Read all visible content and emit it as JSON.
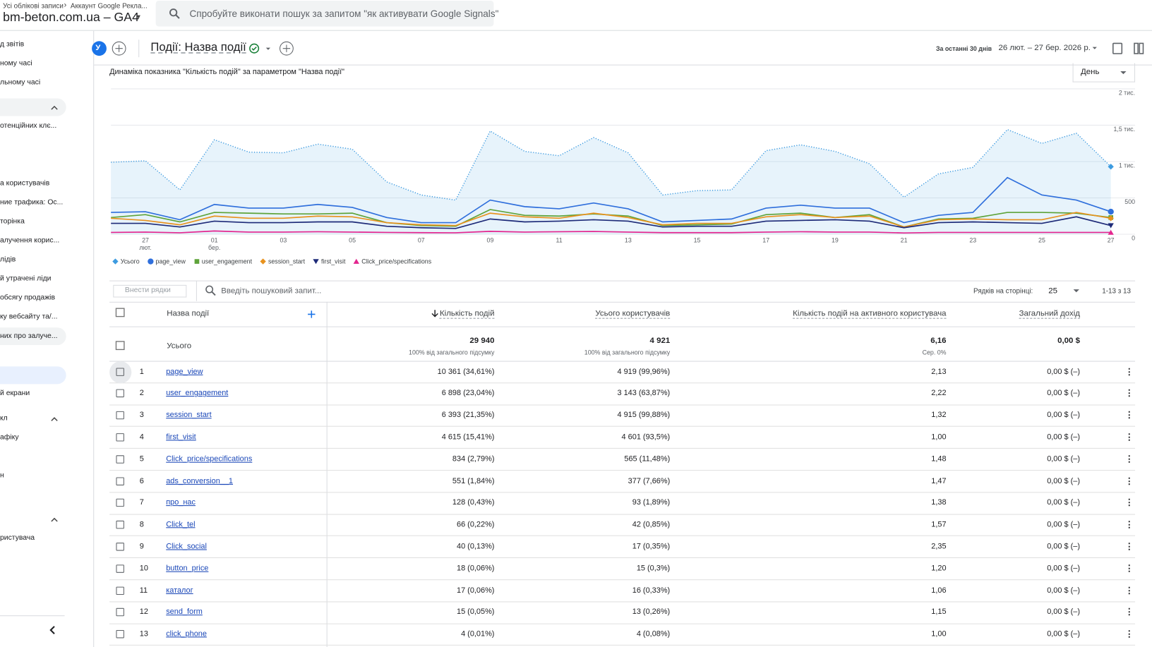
{
  "header": {
    "breadcrumb": [
      "Усі облікові записи",
      "Аккаунт Google Рекла..."
    ],
    "property": "bm-beton.com.ua – GA4",
    "search_placeholder": "Спробуйте виконати пошук за запитом \"як активувати Google Signals\""
  },
  "sidebar": {
    "items": [
      "д звітів",
      "ному часі",
      "льному часі",
      "отенційних клє...",
      "а користувачів",
      "ние трафика: Ос...",
      "торінка",
      "алучення корис...",
      "лідів",
      "й утрачені ліди",
      "обсягу продажів",
      "ку вебсайту та/...",
      "них про залуче...",
      "й екрани",
      "кл",
      "афіку",
      "н",
      "ристувача"
    ]
  },
  "toolbar": {
    "avatar": "У",
    "report_title": "Події: Назва події",
    "date_range_label": "За останні 30 днів",
    "date_range": "26 лют. – 27 бер. 2026 р."
  },
  "chart_data": {
    "type": "line",
    "title": "Динаміка показника \"Кількість подій\" за параметром \"Назва події\"",
    "granularity": "День",
    "categories": [
      null,
      "27\nлют.",
      null,
      "01\nбер.",
      null,
      "03",
      null,
      "05",
      null,
      "07",
      null,
      "09",
      null,
      "11",
      null,
      "13",
      null,
      "15",
      null,
      "17",
      null,
      "19",
      null,
      "21",
      null,
      "23",
      null,
      "25",
      null,
      "27"
    ],
    "ylim": [
      0,
      2000
    ],
    "yticks": [
      0,
      500,
      {
        "value": 1000,
        "label": "1 тис."
      },
      {
        "value": 1500,
        "label": "1,5 тис."
      },
      {
        "value": 2000,
        "label": "2 тис."
      }
    ],
    "grid": true,
    "series": [
      {
        "name": "Усього",
        "color": "#3d9be0",
        "marker": "diamond",
        "style": "dotted",
        "values": [
          990,
          1010,
          610,
          1300,
          1130,
          1120,
          1240,
          1170,
          720,
          540,
          470,
          1420,
          1140,
          1080,
          1330,
          1120,
          540,
          600,
          610,
          1150,
          1230,
          1140,
          970,
          510,
          830,
          920,
          1440,
          1250,
          1390,
          930
        ]
      },
      {
        "name": "page_view",
        "color": "#2f6fdc",
        "marker": "circle",
        "values": [
          300,
          310,
          200,
          410,
          360,
          360,
          410,
          370,
          230,
          160,
          160,
          470,
          380,
          350,
          430,
          350,
          170,
          190,
          210,
          360,
          400,
          360,
          360,
          160,
          260,
          300,
          780,
          540,
          470,
          310
        ]
      },
      {
        "name": "user_engagement",
        "color": "#5ea33a",
        "marker": "square",
        "values": [
          230,
          270,
          170,
          300,
          290,
          280,
          280,
          290,
          160,
          120,
          110,
          340,
          260,
          250,
          280,
          250,
          120,
          130,
          140,
          270,
          290,
          230,
          270,
          100,
          210,
          220,
          300,
          300,
          290,
          230
        ]
      },
      {
        "name": "session_start",
        "color": "#e8921e",
        "marker": "diamond",
        "values": [
          220,
          190,
          130,
          250,
          220,
          220,
          250,
          240,
          160,
          130,
          120,
          290,
          240,
          220,
          290,
          230,
          130,
          150,
          150,
          240,
          270,
          230,
          250,
          100,
          200,
          210,
          200,
          200,
          300,
          220
        ]
      },
      {
        "name": "first_visit",
        "color": "#1d2a78",
        "marker": "triangle-down",
        "values": [
          150,
          150,
          100,
          180,
          160,
          160,
          170,
          170,
          110,
          90,
          80,
          210,
          170,
          180,
          200,
          180,
          100,
          110,
          110,
          180,
          190,
          200,
          180,
          90,
          160,
          170,
          160,
          150,
          240,
          120
        ]
      },
      {
        "name": "Click_price/specifications",
        "color": "#e3258e",
        "marker": "triangle-up",
        "values": [
          25,
          30,
          20,
          45,
          30,
          30,
          35,
          30,
          25,
          22,
          20,
          40,
          30,
          35,
          38,
          30,
          22,
          22,
          22,
          30,
          35,
          30,
          30,
          18,
          25,
          25,
          25,
          25,
          25,
          25
        ]
      }
    ]
  },
  "table": {
    "add_rows": "Внести рядки",
    "search_placeholder": "Введіть пошуковий запит...",
    "rows_per_page_label": "Рядків на сторінці:",
    "rows_per_page": "25",
    "pagination": "1-13 з 13",
    "columns": [
      "Назва події",
      "Кількість подій",
      "Усього користувачів",
      "Кількість подій на активного користувача",
      "Загальний дохід"
    ],
    "total": {
      "label": "Усього",
      "values": [
        "29 940",
        "4 921",
        "6,16",
        "0,00 $"
      ],
      "notes": [
        "100% від загального підсумку",
        "100% від загального підсумку",
        "Сер. 0%"
      ]
    },
    "rows": [
      [
        1,
        "page_view",
        "10 361 (34,61%)",
        "4 919 (99,96%)",
        "2,13",
        "0,00 $ (–)"
      ],
      [
        2,
        "user_engagement",
        "6 898 (23,04%)",
        "3 143 (63,87%)",
        "2,22",
        "0,00 $ (–)"
      ],
      [
        3,
        "session_start",
        "6 393 (21,35%)",
        "4 915 (99,88%)",
        "1,32",
        "0,00 $ (–)"
      ],
      [
        4,
        "first_visit",
        "4 615 (15,41%)",
        "4 601 (93,5%)",
        "1,00",
        "0,00 $ (–)"
      ],
      [
        5,
        "Click_price/specifications",
        "834 (2,79%)",
        "565 (11,48%)",
        "1,48",
        "0,00 $ (–)"
      ],
      [
        6,
        "ads_conversion__1",
        "551 (1,84%)",
        "377 (7,66%)",
        "1,47",
        "0,00 $ (–)"
      ],
      [
        7,
        "про_нас",
        "128 (0,43%)",
        "93 (1,89%)",
        "1,38",
        "0,00 $ (–)"
      ],
      [
        8,
        "Click_tel",
        "66 (0,22%)",
        "42 (0,85%)",
        "1,57",
        "0,00 $ (–)"
      ],
      [
        9,
        "Click_social",
        "40 (0,13%)",
        "17 (0,35%)",
        "2,35",
        "0,00 $ (–)"
      ],
      [
        10,
        "button_price",
        "18 (0,06%)",
        "15 (0,3%)",
        "1,20",
        "0,00 $ (–)"
      ],
      [
        11,
        "каталог",
        "17 (0,06%)",
        "16 (0,33%)",
        "1,06",
        "0,00 $ (–)"
      ],
      [
        12,
        "send_form",
        "15 (0,05%)",
        "13 (0,26%)",
        "1,15",
        "0,00 $ (–)"
      ],
      [
        13,
        "click_phone",
        "4 (0,01%)",
        "4 (0,08%)",
        "1,00",
        "0,00 $ (–)"
      ]
    ]
  }
}
